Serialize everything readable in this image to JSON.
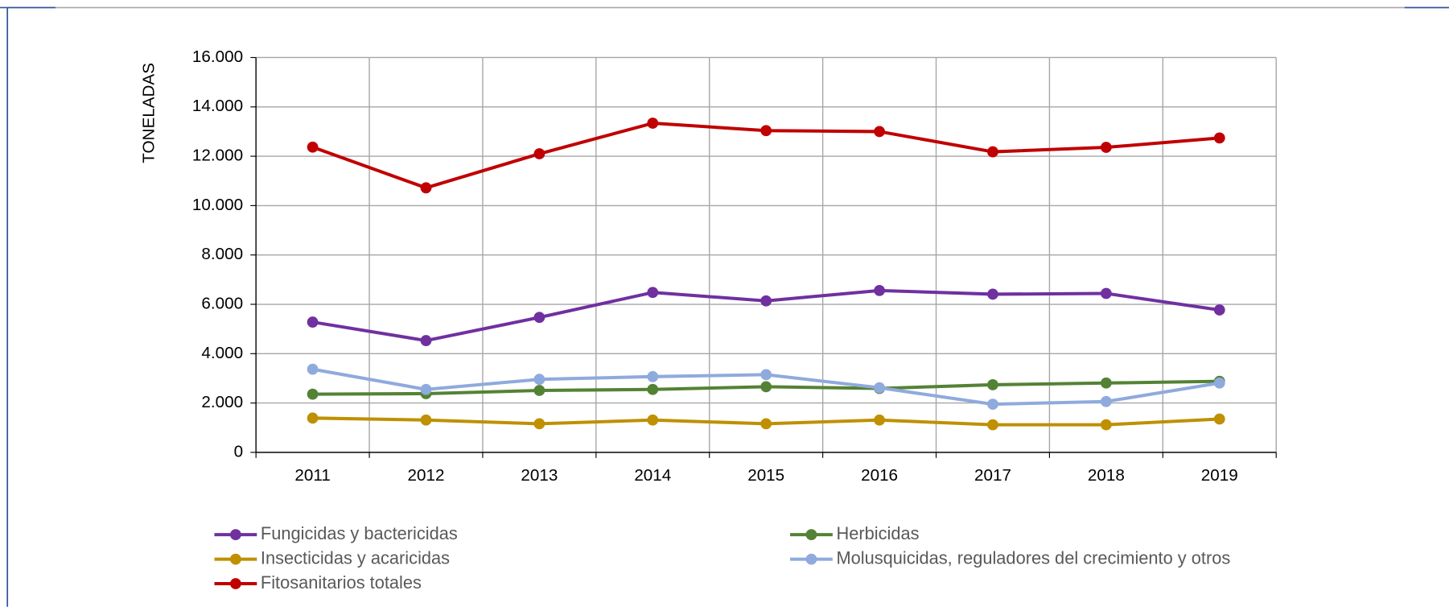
{
  "chart_data": {
    "type": "line",
    "y_label": "TONELADAS",
    "categories": [
      "2011",
      "2012",
      "2013",
      "2014",
      "2015",
      "2016",
      "2017",
      "2018",
      "2019"
    ],
    "series": [
      {
        "name": "Fungicidas y bactericidas",
        "color": "#7030a0",
        "values": [
          5280,
          4530,
          5470,
          6480,
          6140,
          6560,
          6410,
          6440,
          5770
        ]
      },
      {
        "name": "Herbicidas",
        "color": "#548235",
        "values": [
          2360,
          2380,
          2510,
          2550,
          2660,
          2590,
          2740,
          2810,
          2880
        ]
      },
      {
        "name": "Insecticidas y acaricidas",
        "color": "#bf9000",
        "values": [
          1390,
          1310,
          1160,
          1310,
          1160,
          1310,
          1120,
          1120,
          1350
        ]
      },
      {
        "name": "Molusquicidas, reguladores del crecimiento y otros",
        "color": "#8faadc",
        "values": [
          3370,
          2550,
          2960,
          3070,
          3150,
          2620,
          1950,
          2060,
          2810
        ]
      },
      {
        "name": "Fitosanitarios totales",
        "color": "#c00000",
        "values": [
          12370,
          10720,
          12100,
          13340,
          13040,
          13000,
          12180,
          12360,
          12740
        ]
      }
    ],
    "ylim": [
      0,
      16000
    ],
    "yticks": [
      {
        "value": 0,
        "label": "0"
      },
      {
        "value": 2000,
        "label": "2.000"
      },
      {
        "value": 4000,
        "label": "4.000"
      },
      {
        "value": 6000,
        "label": "6.000"
      },
      {
        "value": 8000,
        "label": "8.000"
      },
      {
        "value": 10000,
        "label": "10.000"
      },
      {
        "value": 12000,
        "label": "12.000"
      },
      {
        "value": 14000,
        "label": "14.000"
      },
      {
        "value": 16000,
        "label": "16.000"
      }
    ],
    "grid": true,
    "legend": "bottom"
  }
}
